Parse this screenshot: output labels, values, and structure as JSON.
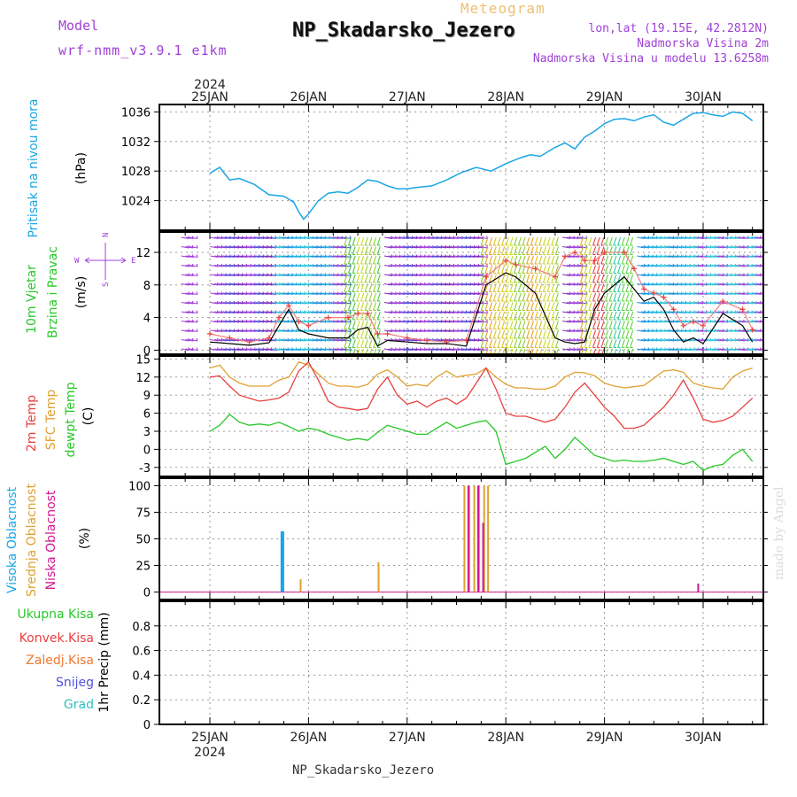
{
  "header": {
    "model_label": "Model",
    "model_value": "wrf-nmm_v3.9.1 e1km",
    "meteogram_label": "Meteogram",
    "station": "NP_Skadarsko_Jezero",
    "lonlat": "lon,lat (19.15E, 42.2812N)",
    "elevation": "Nadmorska Visina 2m",
    "model_elevation": "Nadmorska Visina u modelu 13.6258m"
  },
  "footer": {
    "station": "NP_Skadarsko_Jezero",
    "watermark": "made by Angel"
  },
  "colors": {
    "pressure": "#1aa6e6",
    "temp2m": "#e84040",
    "sfc": "#e0a030",
    "dewpt": "#28c828",
    "high_cloud": "#1aa6e6",
    "mid_cloud": "#e0a030",
    "low_cloud": "#d01890",
    "total_precip": "#28c828",
    "conv_precip": "#e84040",
    "frz_precip": "#f07830",
    "snow": "#5050e0",
    "grad": "#30c0c0",
    "wind_speed": "#000000",
    "gust": "#f08080",
    "grid": "#999999"
  },
  "chart_data": [
    {
      "type": "line",
      "panel": "pressure",
      "ylabel_1": "Pritisak na nivou mora",
      "ylabel_unit": "(hPa)",
      "x_top_year": "2024",
      "x_top_labels": [
        "25JAN",
        "26JAN",
        "27JAN",
        "28JAN",
        "29JAN",
        "30JAN"
      ],
      "grid": true,
      "ylim": [
        1020,
        1037
      ],
      "yticks": [
        1024,
        1028,
        1032,
        1036
      ],
      "x_days": [
        0,
        0.1,
        0.2,
        0.3,
        0.45,
        0.6,
        0.75,
        0.85,
        0.9,
        0.95,
        1.0,
        1.1,
        1.2,
        1.3,
        1.4,
        1.5,
        1.6,
        1.7,
        1.8,
        1.9,
        2.0,
        2.1,
        2.25,
        2.4,
        2.55,
        2.7,
        2.85,
        3.0,
        3.15,
        3.25,
        3.35,
        3.5,
        3.6,
        3.7,
        3.8,
        3.9,
        4.0,
        4.1,
        4.2,
        4.3,
        4.4,
        4.5,
        4.6,
        4.7,
        4.8,
        4.9,
        5.0,
        5.1,
        5.2,
        5.3,
        5.4,
        5.5
      ],
      "series": [
        {
          "values": [
            1027.7,
            1028.5,
            1026.8,
            1027.0,
            1026.2,
            1024.8,
            1024.6,
            1023.8,
            1022.5,
            1021.5,
            1022.2,
            1024.0,
            1025.0,
            1025.2,
            1025.0,
            1025.8,
            1026.8,
            1026.6,
            1026.0,
            1025.6,
            1025.6,
            1025.8,
            1026.0,
            1026.8,
            1027.8,
            1028.5,
            1028.0,
            1029.0,
            1029.8,
            1030.2,
            1030.0,
            1031.2,
            1031.8,
            1031.0,
            1032.6,
            1033.4,
            1034.4,
            1035.0,
            1035.1,
            1034.8,
            1035.3,
            1035.6,
            1034.6,
            1034.2,
            1035.0,
            1035.8,
            1035.9,
            1035.6,
            1035.4,
            1036.0,
            1035.8,
            1034.8
          ]
        }
      ]
    },
    {
      "type": "line",
      "panel": "wind",
      "ylabel_1": "10m Vjetar",
      "ylabel_2": "Brzina i Pravac",
      "ylabel_unit": "(m/s)",
      "compass_n": "N",
      "compass_s": "S",
      "compass_w": "W",
      "compass_e": "E",
      "grid": true,
      "ylim": [
        -0.5,
        14.5
      ],
      "yticks": [
        0,
        4,
        8,
        12
      ],
      "x_days": [
        0,
        0.2,
        0.4,
        0.6,
        0.7,
        0.8,
        0.9,
        1.0,
        1.2,
        1.4,
        1.5,
        1.6,
        1.7,
        1.8,
        2.0,
        2.2,
        2.4,
        2.6,
        2.8,
        3.0,
        3.1,
        3.3,
        3.5,
        3.6,
        3.7,
        3.8,
        3.9,
        4.0,
        4.2,
        4.3,
        4.4,
        4.5,
        4.6,
        4.7,
        4.8,
        4.9,
        5.0,
        5.2,
        5.4,
        5.5
      ],
      "series": [
        {
          "values": [
            1.0,
            0.8,
            0.6,
            0.9,
            3.0,
            5.0,
            2.5,
            2.0,
            1.5,
            1.5,
            2.5,
            2.8,
            0.5,
            1.2,
            1.0,
            0.8,
            0.8,
            0.5,
            8.0,
            9.5,
            9.0,
            7.0,
            1.5,
            1.0,
            0.8,
            1.0,
            5.0,
            7.0,
            9.0,
            7.5,
            6.0,
            6.5,
            5.0,
            2.5,
            1.0,
            1.5,
            0.8,
            4.5,
            3.0,
            1.0
          ]
        },
        {
          "values": [
            2.0,
            1.5,
            1.0,
            1.5,
            4.0,
            5.5,
            3.5,
            3.0,
            4.0,
            4.0,
            4.5,
            4.5,
            2.0,
            2.0,
            1.5,
            1.2,
            1.0,
            1.2,
            9.0,
            11.0,
            10.5,
            10.0,
            9.0,
            11.5,
            12.0,
            11.0,
            11.0,
            12.0,
            12.0,
            10.0,
            7.5,
            7.0,
            6.5,
            5.0,
            3.0,
            3.5,
            3.0,
            6.0,
            5.0,
            2.5
          ]
        }
      ]
    },
    {
      "type": "line",
      "panel": "temperature",
      "ylabel_1": "2m Temp",
      "ylabel_2": "SFC Temp",
      "ylabel_3": "dewpt Temp",
      "ylabel_unit": "(C)",
      "grid": true,
      "ylim": [
        -4.5,
        15.5
      ],
      "yticks": [
        -3,
        0,
        3,
        6,
        9,
        12,
        15
      ],
      "x_days": [
        0,
        0.1,
        0.2,
        0.3,
        0.4,
        0.5,
        0.6,
        0.7,
        0.8,
        0.9,
        1.0,
        1.1,
        1.2,
        1.3,
        1.4,
        1.5,
        1.6,
        1.7,
        1.8,
        1.9,
        2.0,
        2.1,
        2.2,
        2.3,
        2.4,
        2.5,
        2.6,
        2.7,
        2.8,
        2.9,
        3.0,
        3.1,
        3.2,
        3.3,
        3.4,
        3.5,
        3.6,
        3.7,
        3.8,
        3.9,
        4.0,
        4.1,
        4.2,
        4.3,
        4.4,
        4.5,
        4.6,
        4.7,
        4.8,
        4.9,
        5.0,
        5.1,
        5.2,
        5.3,
        5.4,
        5.5
      ],
      "series": [
        {
          "values": [
            12.0,
            12.2,
            10.5,
            9.0,
            8.5,
            8.0,
            8.2,
            8.5,
            9.5,
            13.0,
            14.5,
            11.5,
            8.0,
            7.0,
            6.8,
            6.5,
            6.8,
            10.0,
            12.0,
            9.0,
            7.5,
            8.0,
            7.0,
            8.0,
            8.5,
            7.5,
            8.5,
            11.0,
            13.5,
            10.0,
            6.0,
            5.5,
            5.5,
            5.0,
            4.5,
            5.0,
            7.0,
            9.5,
            11.0,
            9.0,
            7.0,
            5.5,
            3.5,
            3.5,
            4.0,
            5.5,
            7.0,
            9.0,
            11.5,
            8.5,
            5.0,
            4.5,
            4.8,
            5.5,
            7.0,
            8.5
          ]
        },
        {
          "values": [
            13.5,
            14.0,
            12.0,
            11.0,
            10.5,
            10.5,
            10.5,
            11.5,
            12.0,
            14.5,
            14.0,
            12.5,
            11.0,
            10.5,
            10.5,
            10.3,
            10.8,
            12.5,
            13.2,
            12.0,
            10.5,
            10.8,
            10.5,
            12.0,
            13.0,
            12.0,
            12.3,
            12.5,
            13.5,
            12.0,
            10.8,
            10.2,
            10.2,
            10.0,
            10.0,
            10.5,
            12.0,
            12.8,
            12.7,
            12.2,
            11.0,
            10.5,
            10.2,
            10.4,
            10.6,
            11.8,
            13.0,
            13.2,
            12.8,
            11.0,
            10.5,
            10.2,
            10.0,
            12.0,
            13.0,
            13.5
          ]
        },
        {
          "values": [
            3.0,
            4.0,
            5.8,
            4.5,
            4.0,
            4.2,
            4.0,
            4.5,
            3.8,
            3.0,
            3.5,
            3.2,
            2.5,
            2.0,
            1.5,
            1.8,
            1.5,
            2.8,
            4.0,
            3.5,
            3.0,
            2.5,
            2.5,
            3.5,
            4.5,
            3.5,
            4.0,
            4.5,
            4.8,
            3.0,
            -2.5,
            -2.0,
            -1.5,
            -0.5,
            0.5,
            -1.5,
            0.0,
            2.0,
            0.5,
            -1.0,
            -1.5,
            -2.0,
            -1.8,
            -2.0,
            -2.0,
            -1.8,
            -1.5,
            -2.0,
            -2.5,
            -2.0,
            -3.5,
            -2.8,
            -2.5,
            -1.0,
            0.0,
            -2.0
          ]
        }
      ]
    },
    {
      "type": "bar",
      "panel": "cloudiness",
      "ylabel_1": "Visoka Oblacnost",
      "ylabel_2": "Srednja Oblacnost",
      "ylabel_3": "Niska Oblacnost",
      "ylabel_unit": "(%)",
      "grid": true,
      "ylim": [
        -7,
        107
      ],
      "yticks": [
        0,
        25,
        50,
        75,
        100
      ],
      "series": [
        {
          "name": "Visoka Oblacnost",
          "x_days": [
            0.73,
            0.74,
            1.65
          ],
          "values": [
            57,
            57,
            0
          ]
        },
        {
          "name": "Srednja Oblacnost",
          "x_days": [
            0.92,
            1.71,
            2.58,
            2.63,
            2.68,
            2.73,
            2.78,
            2.82
          ],
          "values": [
            12,
            28,
            100,
            100,
            100,
            100,
            100,
            100
          ]
        },
        {
          "name": "Niska Oblacnost",
          "x_days": [
            2.62,
            2.72,
            2.77,
            4.95
          ],
          "values": [
            100,
            100,
            65,
            8
          ]
        }
      ]
    },
    {
      "type": "line",
      "panel": "precipitation",
      "legend_total": "Ukupna Kisa",
      "legend_conv": "Konvek.Kisa",
      "legend_frz": "Zaledj.Kisa",
      "legend_snow": "Snijeg",
      "legend_grad": "Grad",
      "ylabel_unit": "1hr Precip (mm)",
      "x_bottom_labels": [
        "25JAN",
        "26JAN",
        "27JAN",
        "28JAN",
        "29JAN",
        "30JAN"
      ],
      "x_bottom_year": "2024",
      "grid": true,
      "ylim": [
        0,
        1.0
      ],
      "yticks": [
        0,
        0.2,
        0.4,
        0.6,
        0.8
      ],
      "ytick_labels": [
        "0",
        "0.2",
        "0.4",
        "0.6",
        "0.8"
      ],
      "series": [
        {
          "values": [
            0,
            0
          ]
        }
      ]
    }
  ]
}
